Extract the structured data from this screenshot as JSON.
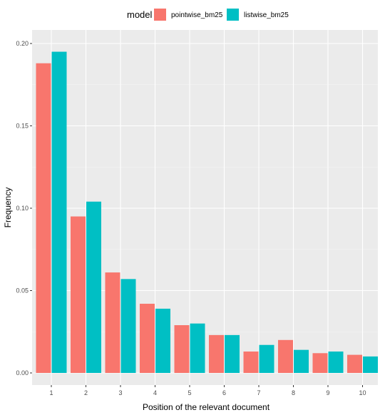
{
  "chart_data": {
    "type": "bar",
    "xlabel": "Position of the relevant document",
    "ylabel": "Frequency",
    "categories": [
      "1",
      "2",
      "3",
      "4",
      "5",
      "6",
      "7",
      "8",
      "9",
      "10"
    ],
    "ylim": [
      0,
      0.21
    ],
    "yticks": [
      "0.00",
      "0.05",
      "0.10",
      "0.15",
      "0.20"
    ],
    "legend": {
      "title": "model",
      "placement": "top"
    },
    "grid": true,
    "series": [
      {
        "name": "pointwise_bm25",
        "color": "#F8766D",
        "values": [
          0.188,
          0.095,
          0.061,
          0.042,
          0.029,
          0.023,
          0.013,
          0.02,
          0.012,
          0.011
        ]
      },
      {
        "name": "listwise_bm25",
        "color": "#00BFC4",
        "values": [
          0.195,
          0.104,
          0.057,
          0.039,
          0.03,
          0.023,
          0.017,
          0.014,
          0.013,
          0.01
        ]
      }
    ]
  }
}
